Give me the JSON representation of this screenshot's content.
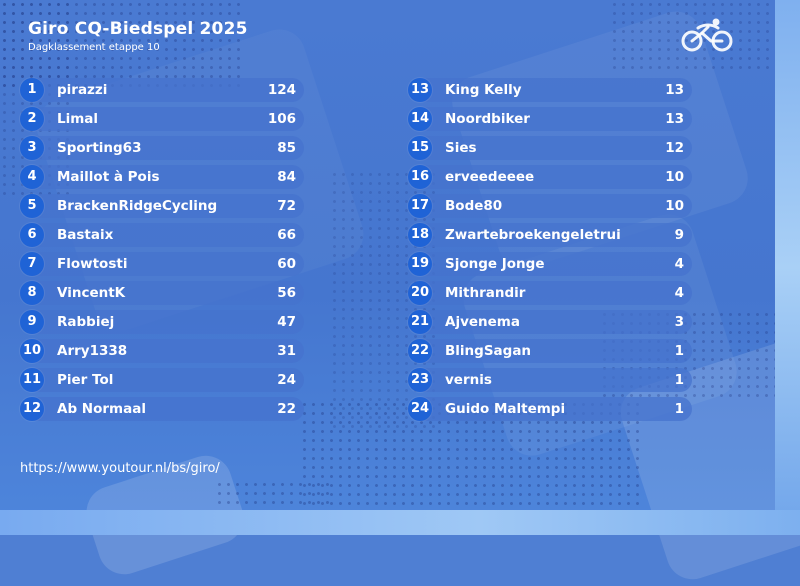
{
  "header": {
    "title": "Giro CQ-Biedspel 2025",
    "subtitle": "Dagklassement etappe 10"
  },
  "logo": {
    "icon": "cyclist-icon"
  },
  "standings_left": [
    {
      "rank": "1",
      "name": "pirazzi",
      "points": "124"
    },
    {
      "rank": "2",
      "name": "Limal",
      "points": "106"
    },
    {
      "rank": "3",
      "name": "Sporting63",
      "points": "85"
    },
    {
      "rank": "4",
      "name": "Maillot à Pois",
      "points": "84"
    },
    {
      "rank": "5",
      "name": "BrackenRidgeCycling",
      "points": "72"
    },
    {
      "rank": "6",
      "name": "Bastaix",
      "points": "66"
    },
    {
      "rank": "7",
      "name": "Flowtosti",
      "points": "60"
    },
    {
      "rank": "8",
      "name": "VincentK",
      "points": "56"
    },
    {
      "rank": "9",
      "name": "Rabbiej",
      "points": "47"
    },
    {
      "rank": "10",
      "name": "Arry1338",
      "points": "31"
    },
    {
      "rank": "11",
      "name": "Pier Tol",
      "points": "24"
    },
    {
      "rank": "12",
      "name": "Ab Normaal",
      "points": "22"
    }
  ],
  "standings_right": [
    {
      "rank": "13",
      "name": "King Kelly",
      "points": "13"
    },
    {
      "rank": "14",
      "name": "Noordbiker",
      "points": "13"
    },
    {
      "rank": "15",
      "name": "Sies",
      "points": "12"
    },
    {
      "rank": "16",
      "name": "erveedeeee",
      "points": "10"
    },
    {
      "rank": "17",
      "name": "Bode80",
      "points": "10"
    },
    {
      "rank": "18",
      "name": "Zwartebroekengeletrui",
      "points": "9"
    },
    {
      "rank": "19",
      "name": "Sjonge Jonge",
      "points": "4"
    },
    {
      "rank": "20",
      "name": "Mithrandir",
      "points": "4"
    },
    {
      "rank": "21",
      "name": "Ajvenema",
      "points": "3"
    },
    {
      "rank": "22",
      "name": "BlingSagan",
      "points": "1"
    },
    {
      "rank": "23",
      "name": "vernis",
      "points": "1"
    },
    {
      "rank": "24",
      "name": "Guido Maltempi",
      "points": "1"
    }
  ],
  "footer": {
    "url": "https://www.youtour.nl/bs/giro/"
  },
  "colors": {
    "background": "#4a7ad2",
    "row": "#4673cd",
    "rank_badge": "#1f63d6",
    "text": "#ffffff"
  }
}
